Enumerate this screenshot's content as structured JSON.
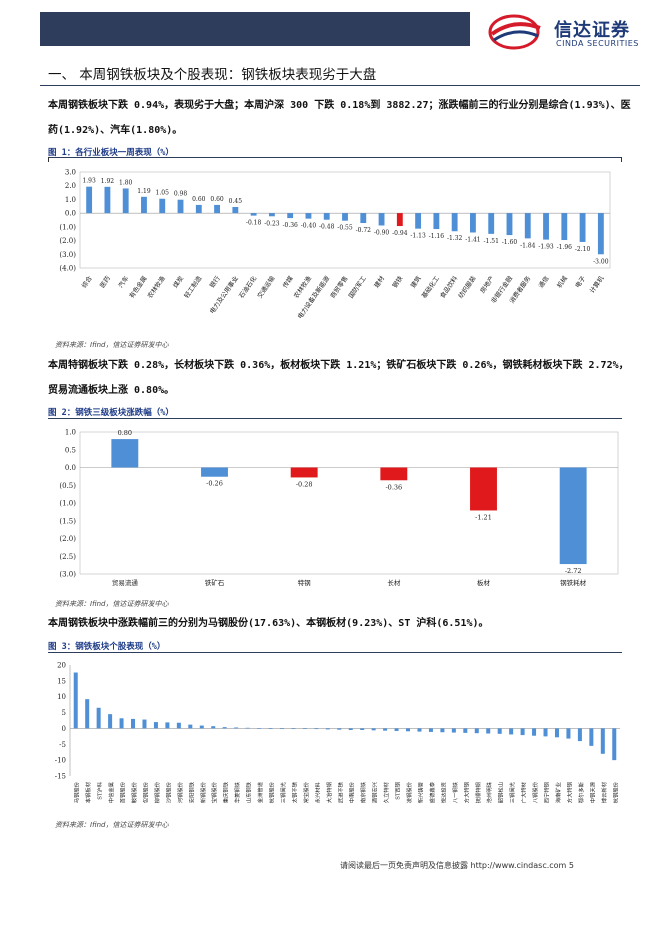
{
  "header": {
    "logo_cn": "信达证券",
    "logo_en": "CINDA SECURITIES"
  },
  "section": {
    "title": "一、  本周钢铁板块及个股表现：钢铁板块表现劣于大盘"
  },
  "paragraphs": {
    "p1": "本周钢铁板块下跌 0.94%，表现劣于大盘；本周沪深 300 下跌 0.18%到 3882.27；涨跌幅前三的行业分别是综合(1.93%)、医药(1.92%)、汽车(1.80%)。",
    "p2": "本周特钢板块下跌 0.28%，长材板块下跌 0.36%，板材板块下跌 1.21%；铁矿石板块下跌 0.26%，钢铁耗材板块下跌 2.72%，贸易流通板块上涨 0.80%。",
    "p3": "本周钢铁板块中涨跌幅前三的分别为马钢股份(17.63%)、本钢板材(9.23%)、ST 沪科(6.51%)。"
  },
  "figures": {
    "fig1_caption": "图 1：各行业板块一周表现（%）",
    "fig2_caption": "图 2：钢铁三级板块涨跌幅（%）",
    "fig3_caption": "图 3：钢铁板块个股表现（%）",
    "source": "资料来源：Ifind，信达证券研发中心"
  },
  "colors": {
    "bar_blue": "#4f8fd6",
    "bar_red": "#e0191c",
    "header_navy": "#2f3d5d",
    "caption_blue": "#1f3c88"
  },
  "chart_data": [
    {
      "type": "bar",
      "title": "图 1：各行业板块一周表现（%）",
      "ylim": [
        -4,
        3
      ],
      "yticks": [
        "3.0",
        "2.0",
        "1.0",
        "0.0",
        "(1.0)",
        "(2.0)",
        "(3.0)",
        "(4.0)"
      ],
      "highlight": "钢铁",
      "categories": [
        "综合",
        "医药",
        "汽车",
        "有色金属",
        "农林牧渔",
        "煤炭",
        "轻工制造",
        "银行",
        "电力及公用事业",
        "石油石化",
        "交通运输",
        "传媒",
        "农林牧渔",
        "电力设备及新能源",
        "商贸零售",
        "国防军工",
        "建材",
        "钢铁",
        "建筑",
        "基础化工",
        "食品饮料",
        "纺织服装",
        "房地产",
        "非银行金融",
        "消费者服务",
        "通信",
        "机械",
        "电子",
        "计算机"
      ],
      "values": [
        1.93,
        1.92,
        1.8,
        1.19,
        1.05,
        0.98,
        0.6,
        0.6,
        0.45,
        -0.18,
        -0.23,
        -0.36,
        -0.4,
        -0.48,
        -0.55,
        -0.72,
        -0.9,
        -0.94,
        -1.13,
        -1.16,
        -1.32,
        -1.41,
        -1.51,
        -1.6,
        -1.84,
        -1.93,
        -1.96,
        -2.1,
        -3.0
      ],
      "value_labels": [
        "1.93",
        "1.92",
        "1.80",
        "1.19",
        "1.05",
        "0.98",
        "0.60",
        "0.60",
        "0.45",
        "-0.18",
        "-0.23",
        "-0.36",
        "-0.40",
        "-0.48",
        "-0.55",
        "-0.72",
        "-0.90",
        "-0.94",
        "-1.13",
        "-1.16",
        "-1.32",
        "-1.41",
        "-1.51",
        "-1.60",
        "-1.84",
        "-1.93",
        "-1.96",
        "-2.10",
        "-3.00"
      ]
    },
    {
      "type": "bar",
      "title": "图 2：钢铁三级板块涨跌幅（%）",
      "ylim": [
        -3,
        1
      ],
      "yticks": [
        "1.0",
        "0.5",
        "0.0",
        "(0.5)",
        "(1.0)",
        "(1.5)",
        "(2.0)",
        "(2.5)",
        "(3.0)"
      ],
      "categories": [
        "贸易流通",
        "铁矿石",
        "特钢",
        "长材",
        "板材",
        "钢铁耗材"
      ],
      "values": [
        0.8,
        -0.26,
        -0.28,
        -0.36,
        -1.21,
        -2.72
      ],
      "value_labels": [
        "0.80",
        "-0.26",
        "-0.28",
        "-0.36",
        "-1.21",
        "-2.72"
      ],
      "bar_colors": [
        "#4f8fd6",
        "#4f8fd6",
        "#e0191c",
        "#e0191c",
        "#e0191c",
        "#4f8fd6"
      ]
    },
    {
      "type": "bar",
      "title": "图 3：钢铁板块个股表现（%）",
      "ylim": [
        -15,
        20
      ],
      "yticks": [
        "20",
        "15",
        "10",
        "5",
        "0",
        "-5",
        "-10",
        "-15"
      ],
      "categories": [
        "马钢股份",
        "本钢板材",
        "ST沪科",
        "中信金属",
        "首钢股份",
        "鞍钢股份",
        "包钢股份",
        "柳钢股份",
        "沙钢股份",
        "河钢股份",
        "安阳钢铁",
        "新钢股份",
        "宝钢股份",
        "重庆钢铁",
        "华菱钢铁",
        "山东钢铁",
        "金洲管道",
        "杭钢股份",
        "三钢闽光",
        "太钢不锈",
        "常宝股份",
        "永兴材料",
        "大冶特钢",
        "武进不锈",
        "中南股份",
        "南京钢铁",
        "酒钢宏兴",
        "久立特材",
        "ST西钢",
        "凌钢股份",
        "新兴铸管",
        "盛德鑫泰",
        "悦达投资",
        "八一钢铁",
        "方大特钢",
        "抚顺特钢",
        "沧州明珠",
        "韶钢松山",
        "三钢闽光",
        "广大特材",
        "八钢股份",
        "西宁特钢",
        "海南矿业",
        "方大特钢",
        "鄂尔多斯",
        "中钢天源",
        "博云新材",
        "杭钢股份"
      ],
      "values": [
        17.63,
        9.23,
        6.51,
        4.5,
        3.2,
        3.0,
        2.8,
        2.0,
        1.9,
        1.8,
        1.2,
        0.9,
        0.7,
        0.4,
        0.3,
        0.2,
        0.1,
        0.0,
        0.0,
        0.0,
        -0.1,
        -0.2,
        -0.3,
        -0.4,
        -0.5,
        -0.5,
        -0.6,
        -0.7,
        -0.8,
        -0.9,
        -1.0,
        -1.1,
        -1.2,
        -1.3,
        -1.4,
        -1.5,
        -1.6,
        -1.7,
        -1.9,
        -2.1,
        -2.3,
        -2.5,
        -2.8,
        -3.2,
        -4.0,
        -5.5,
        -8.0,
        -10.0
      ]
    }
  ],
  "footer": {
    "text": "请阅读最后一页免责声明及信息披露 http://www.cindasc.com  5"
  }
}
